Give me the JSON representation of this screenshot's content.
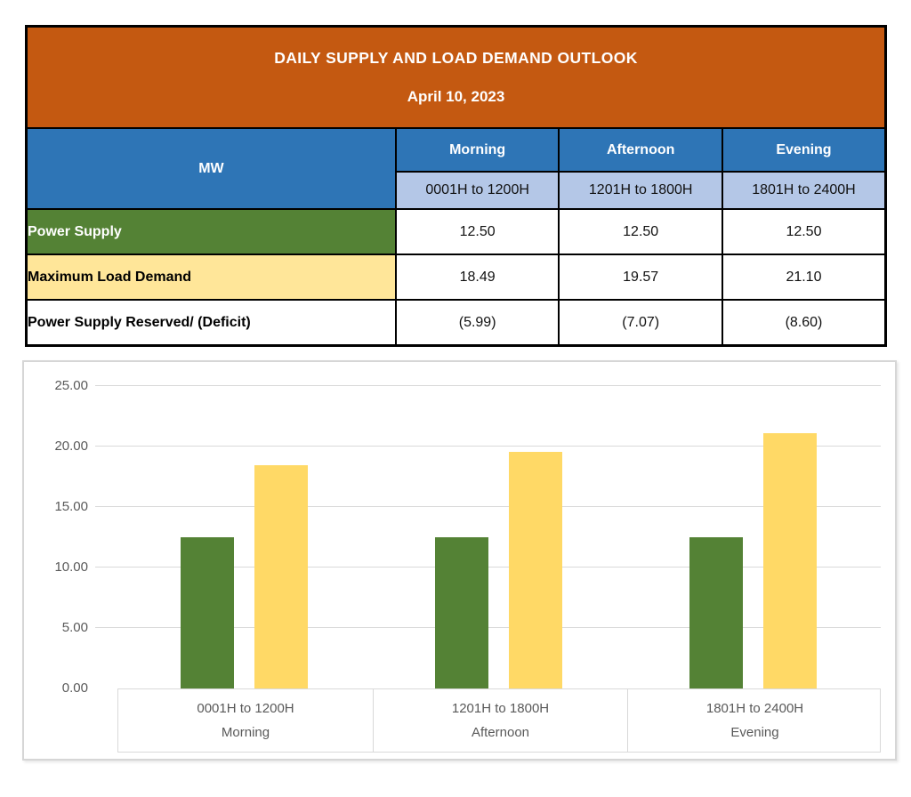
{
  "table": {
    "title": "DAILY SUPPLY AND LOAD DEMAND OUTLOOK",
    "date": "April 10, 2023",
    "unit_label": "MW",
    "periods": [
      {
        "name": "Morning",
        "range": "0001H to 1200H"
      },
      {
        "name": "Afternoon",
        "range": "1201H to 1800H"
      },
      {
        "name": "Evening",
        "range": "1801H to 2400H"
      }
    ],
    "rows": [
      {
        "label": "Power Supply",
        "values": [
          "12.50",
          "12.50",
          "12.50"
        ]
      },
      {
        "label": "Maximum Load Demand",
        "values": [
          "18.49",
          "19.57",
          "21.10"
        ]
      },
      {
        "label": "Power Supply Reserved/ (Deficit)",
        "values": [
          "(5.99)",
          "(7.07)",
          "(8.60)"
        ]
      }
    ]
  },
  "colors": {
    "header_orange": "#C45911",
    "header_blue": "#2E75B6",
    "subheader_light_blue": "#B4C7E7",
    "supply_green": "#548235",
    "demand_light_yellow": "#FFE699",
    "bar_green": "#548235",
    "bar_yellow": "#FFD966",
    "grid_gray": "#D9D9D9",
    "axis_text_gray": "#595959"
  },
  "chart_data": {
    "type": "bar",
    "title": "",
    "xlabel": "",
    "ylabel": "",
    "ylim": [
      0,
      25
    ],
    "grid": true,
    "legend": "none",
    "yticks": [
      {
        "value": 0,
        "label": "0.00"
      },
      {
        "value": 5,
        "label": "5.00"
      },
      {
        "value": 10,
        "label": "10.00"
      },
      {
        "value": 15,
        "label": "15.00"
      },
      {
        "value": 20,
        "label": "20.00"
      },
      {
        "value": 25,
        "label": "25.00"
      }
    ],
    "categories": [
      {
        "range": "0001H to 1200H",
        "period": "Morning"
      },
      {
        "range": "1201H to 1800H",
        "period": "Afternoon"
      },
      {
        "range": "1801H to 2400H",
        "period": "Evening"
      }
    ],
    "series": [
      {
        "name": "Power Supply",
        "slug": "power-supply",
        "color_key": "bar_green",
        "values": [
          12.5,
          12.5,
          12.5
        ]
      },
      {
        "name": "Maximum Load Demand",
        "slug": "max-load-demand",
        "color_key": "bar_yellow",
        "values": [
          18.49,
          19.57,
          21.1
        ]
      }
    ]
  }
}
